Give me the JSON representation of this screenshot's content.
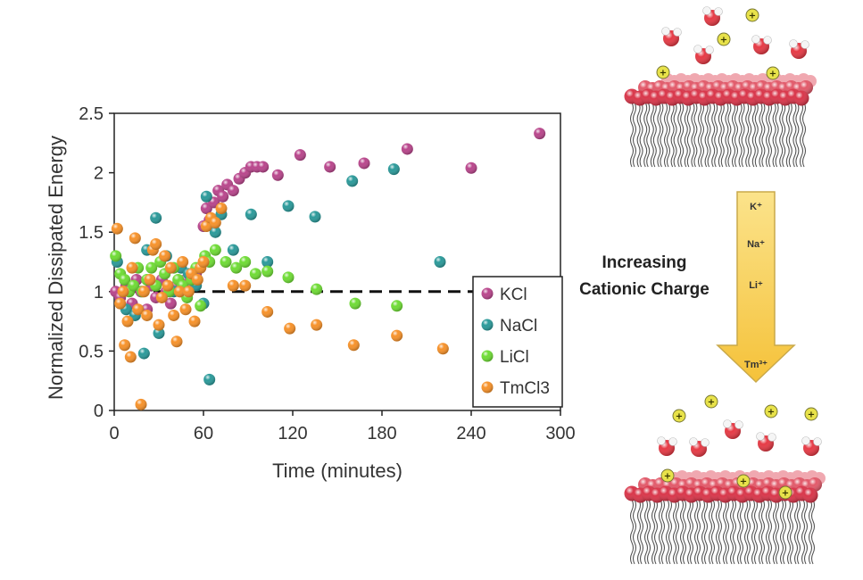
{
  "chart_data": {
    "type": "scatter",
    "title": "",
    "xlabel": "Time (minutes)",
    "ylabel": "Normalized Dissipated Energy",
    "xlim": [
      0,
      300
    ],
    "ylim": [
      0,
      2.5
    ],
    "xticks": [
      "0",
      "60",
      "120",
      "180",
      "240",
      "300"
    ],
    "yticks": [
      "0",
      "0.5",
      "1",
      "1.5",
      "2",
      "2.5"
    ],
    "grid": false,
    "legend_position": "right",
    "reference_line": {
      "y": 1,
      "style": "dashed"
    },
    "series": [
      {
        "name": "KCl",
        "color": "#b9468c",
        "points": [
          [
            1,
            1.0
          ],
          [
            4,
            0.95
          ],
          [
            8,
            1.05
          ],
          [
            12,
            0.9
          ],
          [
            15,
            1.1
          ],
          [
            18,
            1.0
          ],
          [
            22,
            0.85
          ],
          [
            25,
            1.05
          ],
          [
            28,
            0.95
          ],
          [
            32,
            1.1
          ],
          [
            35,
            1.0
          ],
          [
            38,
            0.9
          ],
          [
            42,
            1.05
          ],
          [
            45,
            1.0
          ],
          [
            48,
            1.1
          ],
          [
            52,
            1.05
          ],
          [
            55,
            1.15
          ],
          [
            58,
            1.2
          ],
          [
            60,
            1.55
          ],
          [
            62,
            1.7
          ],
          [
            64,
            1.6
          ],
          [
            67,
            1.75
          ],
          [
            70,
            1.85
          ],
          [
            73,
            1.8
          ],
          [
            76,
            1.9
          ],
          [
            80,
            1.85
          ],
          [
            84,
            1.95
          ],
          [
            88,
            2.0
          ],
          [
            92,
            2.05
          ],
          [
            96,
            2.05
          ],
          [
            100,
            2.05
          ],
          [
            110,
            1.98
          ],
          [
            125,
            2.15
          ],
          [
            145,
            2.05
          ],
          [
            168,
            2.08
          ],
          [
            197,
            2.2
          ],
          [
            240,
            2.04
          ],
          [
            286,
            2.33
          ]
        ]
      },
      {
        "name": "NaCl",
        "color": "#2b9a9a",
        "points": [
          [
            2,
            1.25
          ],
          [
            8,
            0.85
          ],
          [
            14,
            0.8
          ],
          [
            20,
            0.48
          ],
          [
            22,
            1.35
          ],
          [
            28,
            1.62
          ],
          [
            30,
            0.65
          ],
          [
            35,
            1.3
          ],
          [
            40,
            1.0
          ],
          [
            45,
            1.2
          ],
          [
            50,
            1.15
          ],
          [
            55,
            1.05
          ],
          [
            60,
            0.9
          ],
          [
            62,
            1.8
          ],
          [
            64,
            0.26
          ],
          [
            68,
            1.5
          ],
          [
            72,
            1.65
          ],
          [
            80,
            1.35
          ],
          [
            92,
            1.65
          ],
          [
            103,
            1.25
          ],
          [
            117,
            1.72
          ],
          [
            135,
            1.63
          ],
          [
            160,
            1.93
          ],
          [
            188,
            2.03
          ],
          [
            219,
            1.25
          ]
        ]
      },
      {
        "name": "LiCl",
        "color": "#6fdc35",
        "points": [
          [
            1,
            1.3
          ],
          [
            4,
            1.15
          ],
          [
            7,
            1.1
          ],
          [
            10,
            1.0
          ],
          [
            13,
            1.05
          ],
          [
            16,
            1.2
          ],
          [
            19,
            1.0
          ],
          [
            22,
            1.1
          ],
          [
            25,
            1.2
          ],
          [
            28,
            1.05
          ],
          [
            31,
            1.25
          ],
          [
            34,
            1.15
          ],
          [
            37,
            1.0
          ],
          [
            40,
            1.2
          ],
          [
            43,
            1.1
          ],
          [
            46,
            1.05
          ],
          [
            49,
            0.95
          ],
          [
            52,
            1.1
          ],
          [
            55,
            1.2
          ],
          [
            58,
            0.88
          ],
          [
            61,
            1.3
          ],
          [
            64,
            1.25
          ],
          [
            68,
            1.35
          ],
          [
            75,
            1.25
          ],
          [
            82,
            1.2
          ],
          [
            88,
            1.25
          ],
          [
            95,
            1.15
          ],
          [
            103,
            1.17
          ],
          [
            117,
            1.12
          ],
          [
            136,
            1.02
          ],
          [
            162,
            0.9
          ],
          [
            190,
            0.88
          ]
        ]
      },
      {
        "name": "TmCl3",
        "color": "#f7922a",
        "points": [
          [
            2,
            1.53
          ],
          [
            4,
            0.9
          ],
          [
            6,
            1.0
          ],
          [
            7,
            0.55
          ],
          [
            9,
            0.75
          ],
          [
            11,
            0.45
          ],
          [
            12,
            1.2
          ],
          [
            14,
            1.45
          ],
          [
            16,
            0.85
          ],
          [
            18,
            0.05
          ],
          [
            20,
            1.0
          ],
          [
            22,
            0.8
          ],
          [
            24,
            1.1
          ],
          [
            26,
            1.35
          ],
          [
            28,
            1.4
          ],
          [
            30,
            0.72
          ],
          [
            32,
            0.95
          ],
          [
            34,
            1.3
          ],
          [
            36,
            1.05
          ],
          [
            38,
            1.2
          ],
          [
            40,
            0.8
          ],
          [
            42,
            0.58
          ],
          [
            44,
            1.0
          ],
          [
            46,
            1.25
          ],
          [
            48,
            0.85
          ],
          [
            50,
            1.0
          ],
          [
            52,
            1.15
          ],
          [
            54,
            0.75
          ],
          [
            56,
            1.1
          ],
          [
            58,
            1.2
          ],
          [
            60,
            1.25
          ],
          [
            62,
            1.55
          ],
          [
            65,
            1.62
          ],
          [
            68,
            1.58
          ],
          [
            72,
            1.7
          ],
          [
            80,
            1.05
          ],
          [
            88,
            1.05
          ],
          [
            103,
            0.83
          ],
          [
            118,
            0.69
          ],
          [
            136,
            0.72
          ],
          [
            161,
            0.55
          ],
          [
            190,
            0.63
          ],
          [
            221,
            0.52
          ]
        ]
      }
    ]
  },
  "diagram": {
    "arrow_labels": [
      "K⁺",
      "Na⁺",
      "Li⁺",
      "Tm³⁺"
    ],
    "caption_lines": [
      "Increasing",
      "Cationic Charge"
    ],
    "ion_symbol": "+"
  },
  "colors": {
    "lipid_head": "#d9364a",
    "lipid_head_light": "#f0a8b0",
    "lipid_tail": "#555555",
    "water_oxygen": "#e63a45",
    "water_hydrogen": "#f5f5f5",
    "ion": "#e8e24a",
    "arrow_fill": "#f8d35a",
    "arrow_stroke": "#c9a94a"
  }
}
